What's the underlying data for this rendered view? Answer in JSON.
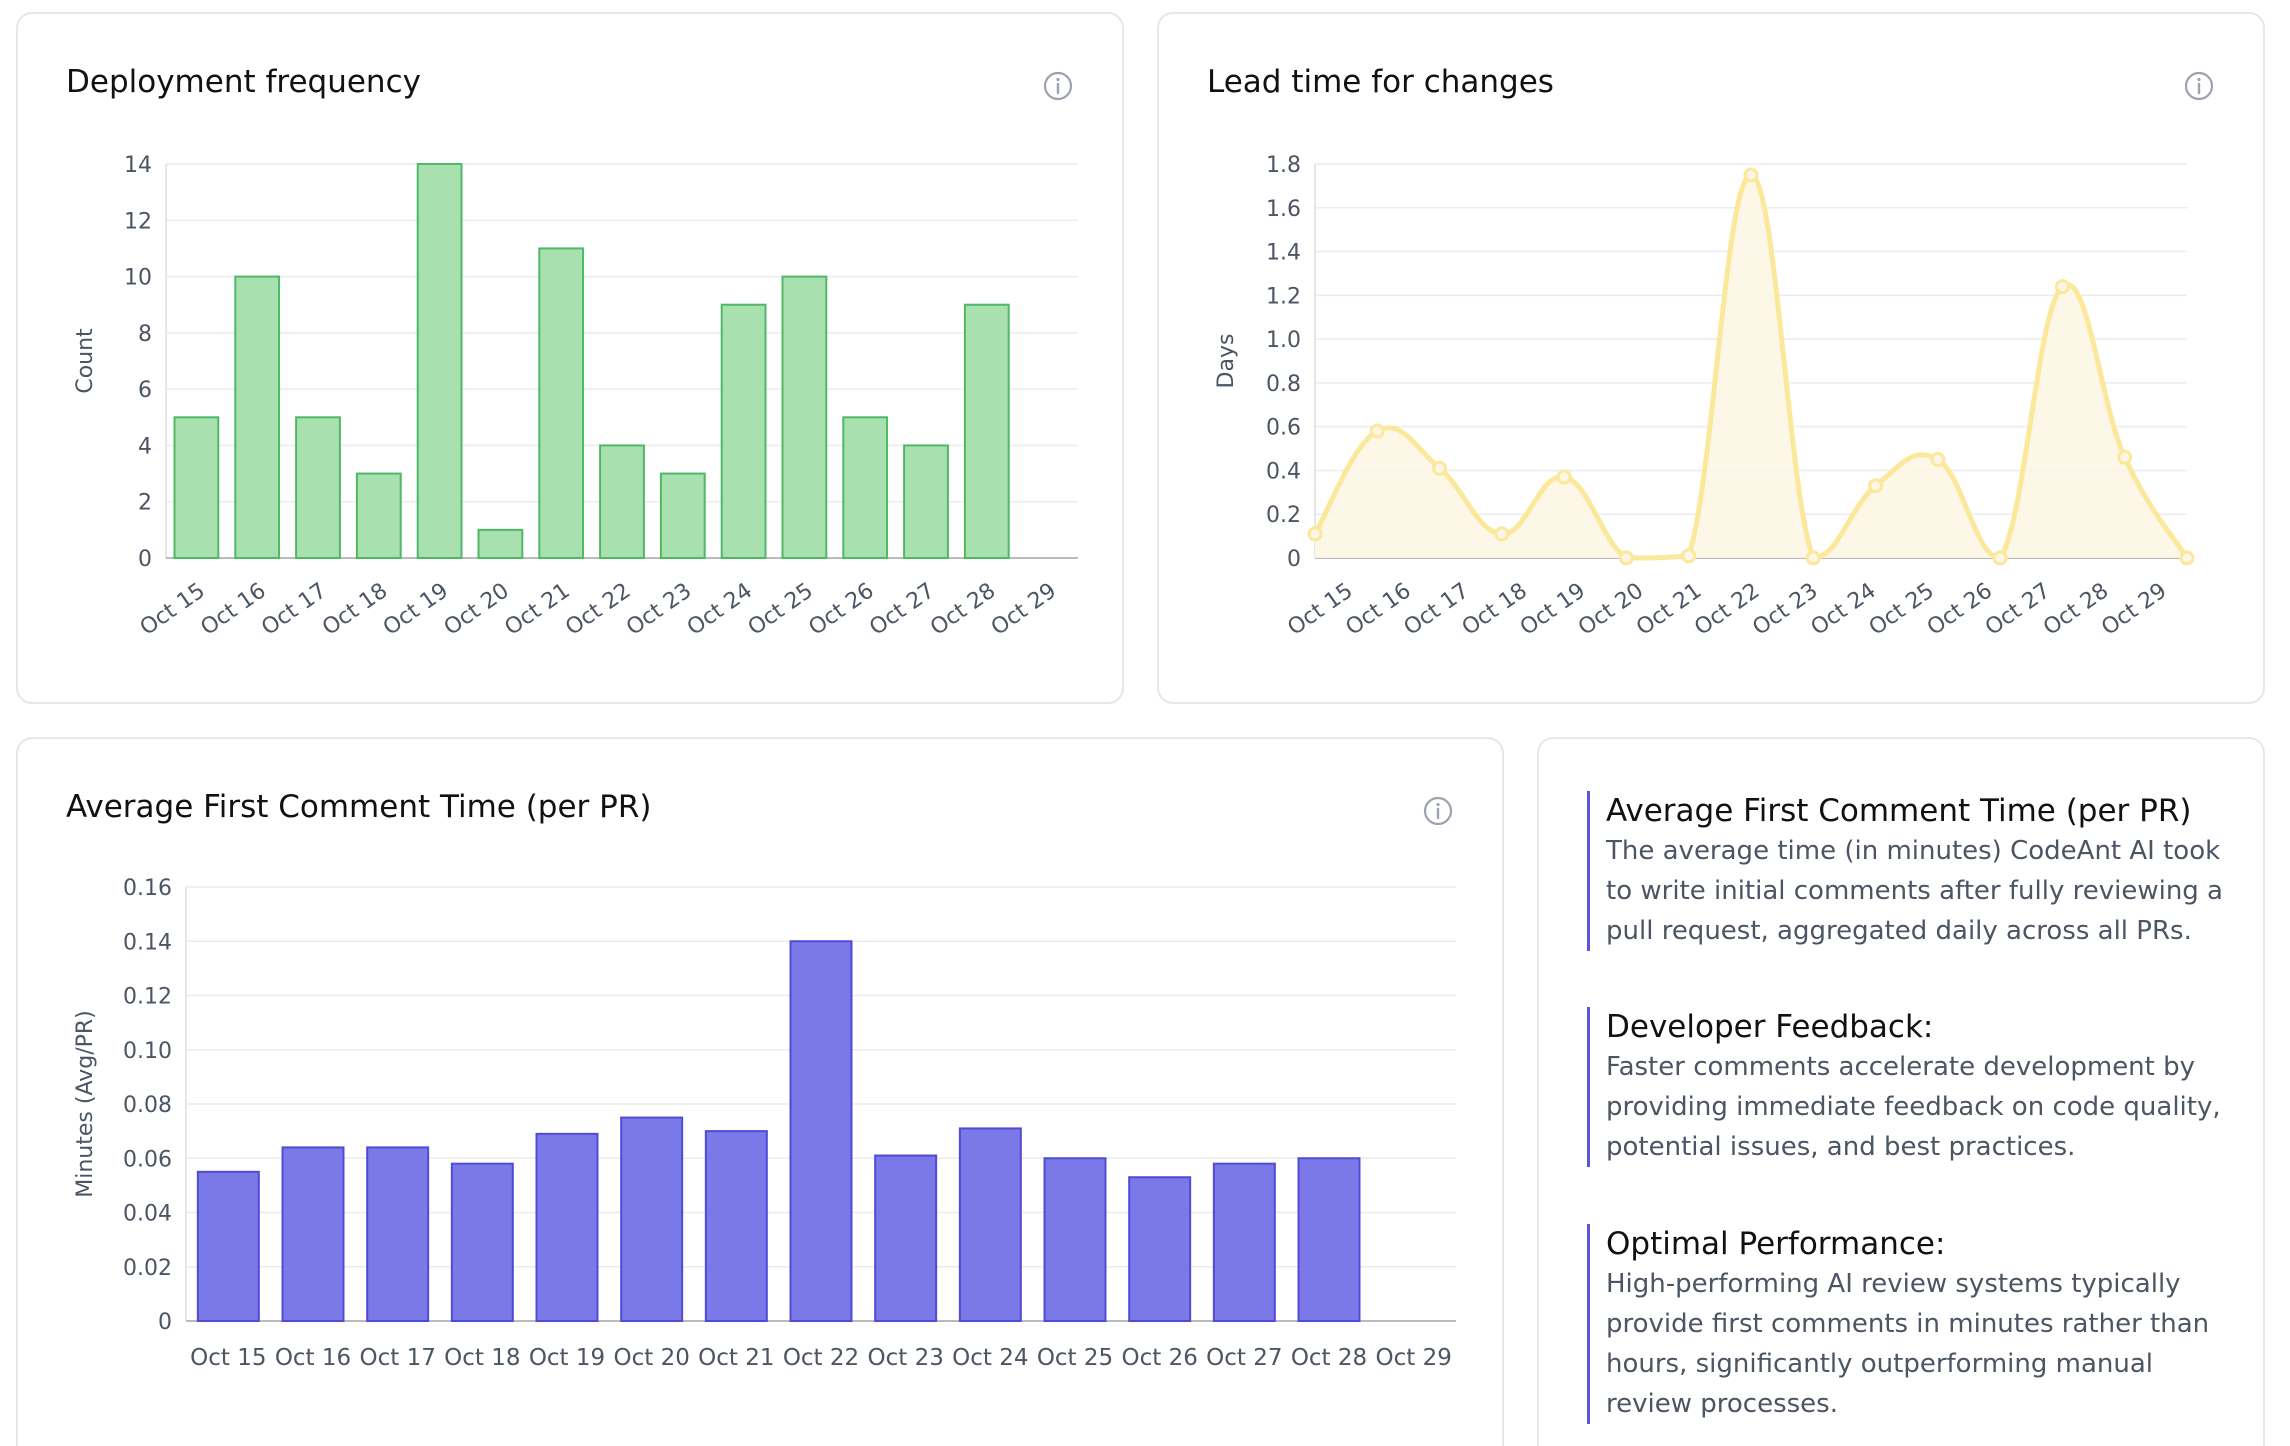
{
  "deployment": {
    "title": "Deployment frequency",
    "info_icon": "info-circle-icon",
    "chart_data": {
      "type": "bar",
      "categories": [
        "Oct 15",
        "Oct 16",
        "Oct 17",
        "Oct 18",
        "Oct 19",
        "Oct 20",
        "Oct 21",
        "Oct 22",
        "Oct 23",
        "Oct 24",
        "Oct 25",
        "Oct 26",
        "Oct 27",
        "Oct 28",
        "Oct 29"
      ],
      "values": [
        5,
        10,
        5,
        3,
        14,
        1,
        11,
        4,
        3,
        9,
        10,
        5,
        4,
        9,
        null
      ],
      "ylabel": "Count",
      "ylim": [
        0,
        14
      ],
      "yticks": [
        0,
        2,
        4,
        6,
        8,
        10,
        12,
        14
      ],
      "grid": true,
      "fill": "#a8e0b0",
      "stroke": "#4fb866"
    }
  },
  "lead_time": {
    "title": "Lead time for changes",
    "info_icon": "info-circle-icon",
    "chart_data": {
      "type": "area",
      "categories": [
        "Oct 15",
        "Oct 16",
        "Oct 17",
        "Oct 18",
        "Oct 19",
        "Oct 20",
        "Oct 21",
        "Oct 22",
        "Oct 23",
        "Oct 24",
        "Oct 25",
        "Oct 26",
        "Oct 27",
        "Oct 28",
        "Oct 29"
      ],
      "values": [
        0.11,
        0.58,
        0.41,
        0.11,
        0.37,
        0,
        0.01,
        1.75,
        0,
        0.33,
        0.45,
        0,
        1.24,
        0.46,
        0
      ],
      "ylabel": "Days",
      "ylim": [
        0,
        1.8
      ],
      "yticks": [
        0,
        0.2,
        0.4,
        0.6,
        0.8,
        1.0,
        1.2,
        1.4,
        1.6,
        1.8
      ],
      "grid": true,
      "stroke": "#fbe89a",
      "fill": "#fdf6e6"
    }
  },
  "comment_time": {
    "title": "Average First Comment Time (per PR)",
    "info_icon": "info-circle-icon",
    "chart_data": {
      "type": "bar",
      "categories": [
        "Oct 15",
        "Oct 16",
        "Oct 17",
        "Oct 18",
        "Oct 19",
        "Oct 20",
        "Oct 21",
        "Oct 22",
        "Oct 23",
        "Oct 24",
        "Oct 25",
        "Oct 26",
        "Oct 27",
        "Oct 28",
        "Oct 29"
      ],
      "values": [
        0.055,
        0.064,
        0.064,
        0.058,
        0.069,
        0.075,
        0.07,
        0.14,
        0.061,
        0.071,
        0.06,
        0.053,
        0.058,
        0.06,
        null
      ],
      "ylabel": "Minutes (Avg/PR)",
      "ylim": [
        0,
        0.16
      ],
      "yticks": [
        0,
        0.02,
        0.04,
        0.06,
        0.08,
        0.1,
        0.12,
        0.14,
        0.16
      ],
      "grid": true,
      "fill": "#7b78e8",
      "stroke": "#4f4bd6"
    }
  },
  "info_panel": {
    "blocks": [
      {
        "heading": "Average First Comment Time (per PR)",
        "lines": [
          "The average time (in minutes) CodeAnt AI took",
          "to write initial comments after fully reviewing a",
          "pull request, aggregated daily across all PRs."
        ]
      },
      {
        "heading": "Developer Feedback:",
        "lines": [
          "Faster comments accelerate development by",
          "providing immediate feedback on code quality,",
          "potential issues, and best practices."
        ]
      },
      {
        "heading": "Optimal Performance:",
        "lines": [
          "High-performing AI review systems typically",
          "provide first comments in minutes rather than",
          "hours, significantly outperforming manual",
          "review processes."
        ]
      }
    ]
  }
}
